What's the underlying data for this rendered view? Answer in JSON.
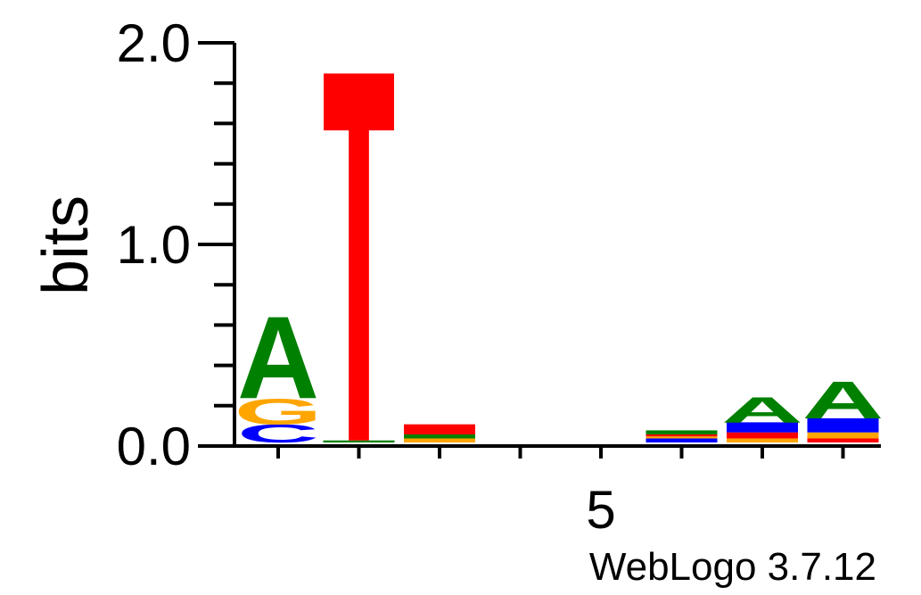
{
  "chart_data": {
    "type": "sequence-logo",
    "ylabel": "bits",
    "ylim": [
      0,
      2.0
    ],
    "y_ticks": [
      "0.0",
      "1.0",
      "2.0"
    ],
    "x_ticks": [
      "5"
    ],
    "x_tick_positions": [
      5
    ],
    "positions": [
      1,
      2,
      3,
      4,
      5,
      6,
      7,
      8
    ],
    "colors": {
      "A": "#008000",
      "C": "#0000ff",
      "G": "#ffa500",
      "T": "#ff0000"
    },
    "columns": [
      {
        "position": 1,
        "stack": [
          {
            "letter": "C",
            "bits": 0.09
          },
          {
            "letter": "G",
            "bits": 0.13
          },
          {
            "letter": "A",
            "bits": 0.42
          }
        ]
      },
      {
        "position": 2,
        "stack": [
          {
            "letter": "A",
            "bits": 0.01
          },
          {
            "letter": "T",
            "bits": 1.82
          }
        ]
      },
      {
        "position": 3,
        "stack": [
          {
            "letter": "G",
            "bits": 0.02
          },
          {
            "letter": "A",
            "bits": 0.02
          },
          {
            "letter": "T",
            "bits": 0.05
          }
        ]
      },
      {
        "position": 4,
        "stack": []
      },
      {
        "position": 5,
        "stack": []
      },
      {
        "position": 6,
        "stack": [
          {
            "letter": "C",
            "bits": 0.02
          },
          {
            "letter": "G",
            "bits": 0.01
          },
          {
            "letter": "T",
            "bits": 0.01
          },
          {
            "letter": "A",
            "bits": 0.02
          }
        ]
      },
      {
        "position": 7,
        "stack": [
          {
            "letter": "G",
            "bits": 0.02
          },
          {
            "letter": "T",
            "bits": 0.03
          },
          {
            "letter": "C",
            "bits": 0.05
          },
          {
            "letter": "A",
            "bits": 0.13
          }
        ]
      },
      {
        "position": 8,
        "stack": [
          {
            "letter": "T",
            "bits": 0.02
          },
          {
            "letter": "G",
            "bits": 0.03
          },
          {
            "letter": "C",
            "bits": 0.07
          },
          {
            "letter": "A",
            "bits": 0.19
          }
        ]
      }
    ]
  },
  "footer": {
    "credit": "WebLogo 3.7.12"
  }
}
